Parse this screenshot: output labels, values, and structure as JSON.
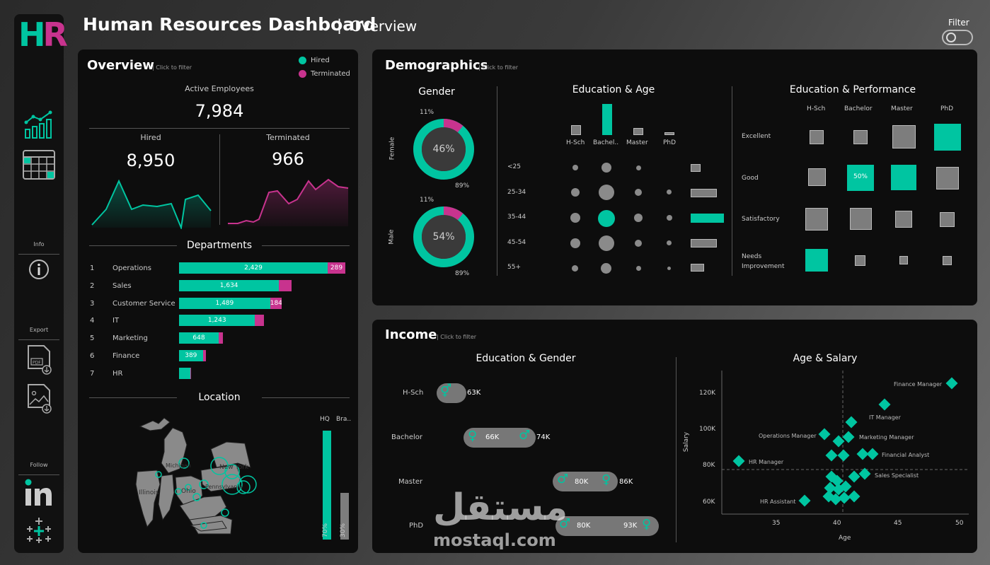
{
  "header": {
    "title": "Human Resources Dashboard",
    "separator": "|",
    "subtitle": "Overview",
    "filter_label": "Filter"
  },
  "sidebar": {
    "logo_h": "H",
    "logo_r": "R",
    "info_label": "Info",
    "export_label": "Export",
    "follow_label": "Follow"
  },
  "overview": {
    "title": "Overview",
    "click_hint": "| Click to filter",
    "legend": {
      "hired": "Hired",
      "terminated": "Terminated"
    },
    "active_label": "Active Employees",
    "active_value": "7,984",
    "hired_label": "Hired",
    "hired_value": "8,950",
    "terminated_label": "Terminated",
    "terminated_value": "966",
    "departments_title": "Departments",
    "departments": [
      {
        "rank": "1",
        "name": "Operations",
        "hired": 2429,
        "hired_label": "2,429",
        "term": 289,
        "term_label": "289"
      },
      {
        "rank": "2",
        "name": "Sales",
        "hired": 1634,
        "hired_label": "1,634",
        "term": 210,
        "term_label": ""
      },
      {
        "rank": "3",
        "name": "Customer Service",
        "hired": 1489,
        "hired_label": "1,489",
        "term": 184,
        "term_label": "184"
      },
      {
        "rank": "4",
        "name": "IT",
        "hired": 1243,
        "hired_label": "1,243",
        "term": 140,
        "term_label": ""
      },
      {
        "rank": "5",
        "name": "Marketing",
        "hired": 648,
        "hired_label": "648",
        "term": 70,
        "term_label": ""
      },
      {
        "rank": "6",
        "name": "Finance",
        "hired": 389,
        "hired_label": "389",
        "term": 50,
        "term_label": ""
      },
      {
        "rank": "7",
        "name": "HR",
        "hired": 180,
        "hired_label": "",
        "term": 10,
        "term_label": ""
      }
    ],
    "location_title": "Location",
    "map_labels": [
      "Michigan",
      "New York",
      "Illinois",
      "Ohio",
      "Pennsylvania"
    ],
    "hq_label": "HQ",
    "branch_label": "Bra..",
    "hq_pct": "70%",
    "branch_pct": "30%",
    "hq_value": 0.7,
    "branch_value": 0.3
  },
  "demographics": {
    "title": "Demographics",
    "click_hint": "| Click to filter",
    "gender_title": "Gender",
    "female": {
      "label": "Female",
      "pct": "46%",
      "outer_top": "11%",
      "outer_bottom": "89%",
      "share": 0.11
    },
    "male": {
      "label": "Male",
      "pct": "54%",
      "outer_top": "11%",
      "outer_bottom": "89%",
      "share": 0.11
    },
    "edu_age_title": "Education & Age",
    "edu_levels": [
      "H-Sch",
      "Bachel..",
      "Master",
      "PhD"
    ],
    "age_groups": [
      "<25",
      "25-34",
      "35-44",
      "45-54",
      "55+"
    ],
    "edu_perf_title": "Education & Performance",
    "perf_cols": [
      "H-Sch",
      "Bachelor",
      "Master",
      "PhD"
    ],
    "perf_rows": [
      "Excellent",
      "Good",
      "Satisfactory",
      "Needs Improvement"
    ],
    "perf_highlight": "50%"
  },
  "income": {
    "title": "Income",
    "click_hint": "| Click to filter",
    "edu_gender_title": "Education & Gender",
    "edu_rows": [
      {
        "label": "H-Sch",
        "female": "",
        "male": "63K"
      },
      {
        "label": "Bachelor",
        "female": "66K",
        "male": "74K"
      },
      {
        "label": "Master",
        "female": "80K",
        "male": "86K"
      },
      {
        "label": "PhD",
        "female": "80K",
        "male": "93K"
      }
    ],
    "age_salary_title": "Age & Salary",
    "y_axis_label": "Salary",
    "x_axis_label": "Age",
    "y_ticks": [
      "120K",
      "100K",
      "80K",
      "60K"
    ],
    "x_ticks": [
      "35",
      "40",
      "45",
      "50"
    ],
    "point_labels": [
      "Finance Manager",
      "IT Manager",
      "Operations Manager",
      "Marketing Manager",
      "Financial Analyst",
      "HR Manager",
      "Sales Specialist",
      "HR Assistant"
    ]
  },
  "watermark": {
    "arabic": "مستقل",
    "latin": "mostaql.com"
  },
  "colors": {
    "hired": "#00c5a1",
    "terminated": "#c8338e",
    "gray": "#7d7d7d"
  }
}
